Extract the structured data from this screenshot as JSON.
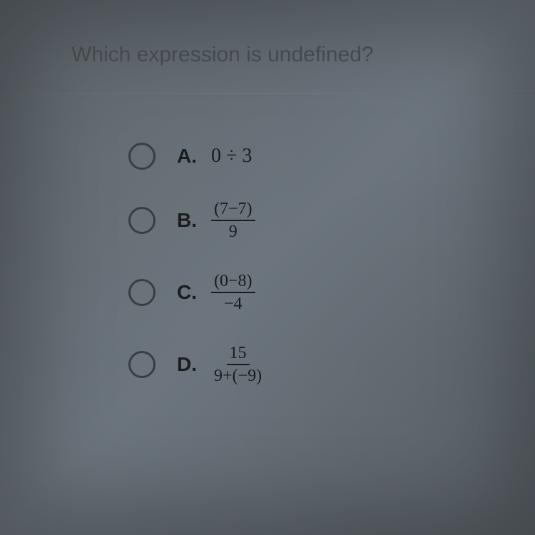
{
  "question": {
    "prompt": "Which expression is undefined?"
  },
  "options": [
    {
      "letter": "A.",
      "type": "inline",
      "expr": "0 ÷ 3"
    },
    {
      "letter": "B.",
      "type": "fraction",
      "numerator": "(7−7)",
      "denominator": "9"
    },
    {
      "letter": "C.",
      "type": "fraction",
      "numerator": "(0−8)",
      "denominator": "−4"
    },
    {
      "letter": "D.",
      "type": "fraction",
      "numerator": "15",
      "denominator": "9+(−9)"
    }
  ],
  "colors": {
    "background_primary": "#636a70",
    "text_question": "#4a4f54",
    "text_option": "#1a1c1e",
    "radio_border": "#3a3d40"
  }
}
